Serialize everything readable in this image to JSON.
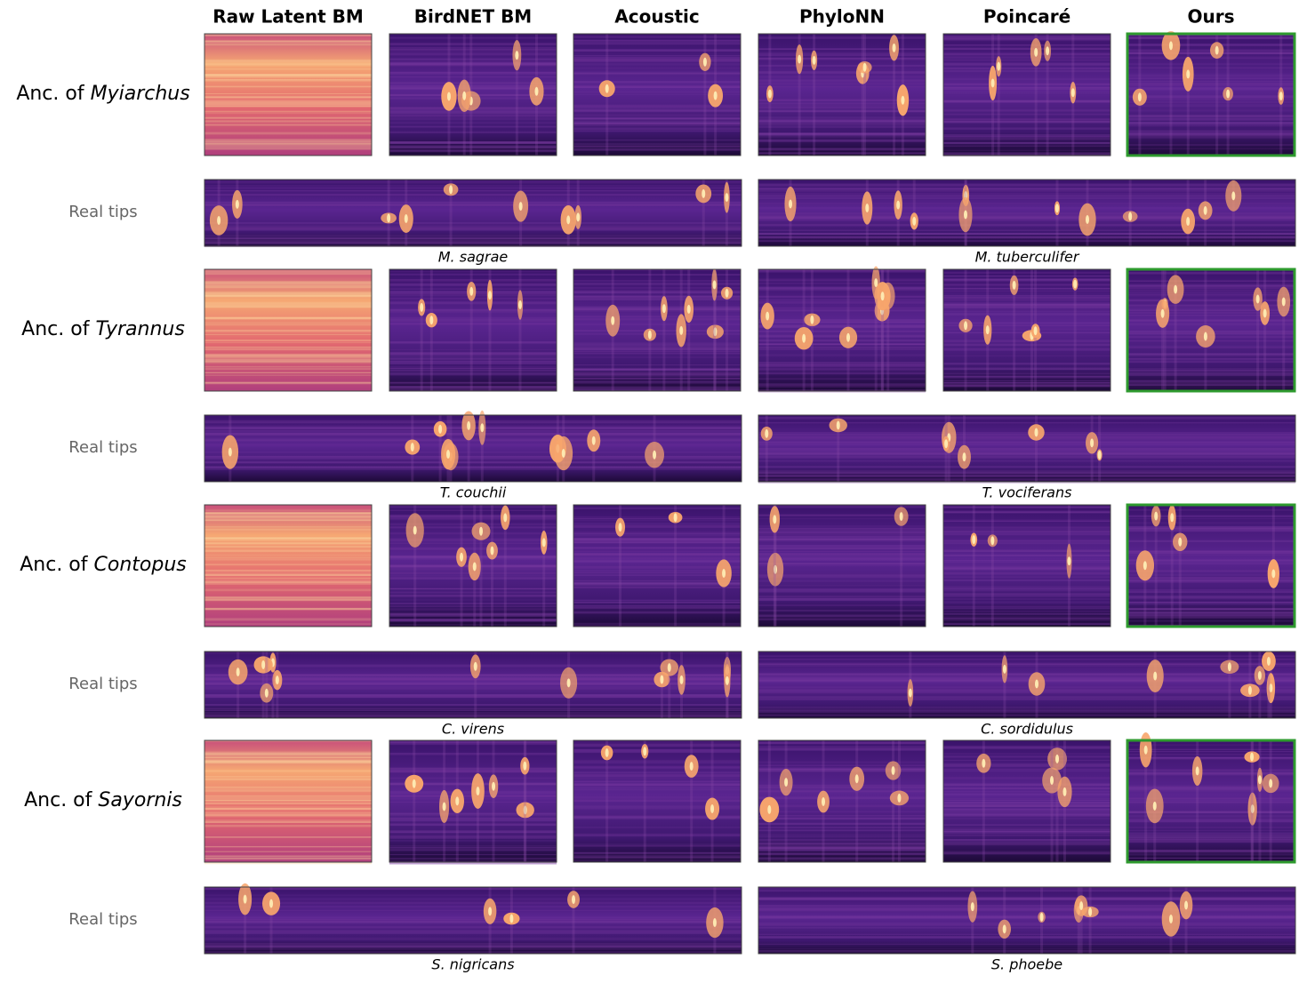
{
  "columns": [
    "Raw Latent BM",
    "BirdNET BM",
    "Acoustic",
    "PhyloNN",
    "Poincaré",
    "Ours"
  ],
  "groups": [
    {
      "prefix": "Anc. of",
      "genus": "Myiarchus",
      "tips_label": "Real tips",
      "tips": [
        "M. sagrae",
        "M. tuberculifer"
      ]
    },
    {
      "prefix": "Anc. of",
      "genus": "Tyrannus",
      "tips_label": "Real tips",
      "tips": [
        "T. couchii",
        "T. vociferans"
      ]
    },
    {
      "prefix": "Anc. of",
      "genus": "Contopus",
      "tips_label": "Real tips",
      "tips": [
        "C. virens",
        "C. sordidulus"
      ]
    },
    {
      "prefix": "Anc. of",
      "genus": "Sayornis",
      "tips_label": "Real tips",
      "tips": [
        "S. nigricans",
        "S. phoebe"
      ]
    }
  ]
}
